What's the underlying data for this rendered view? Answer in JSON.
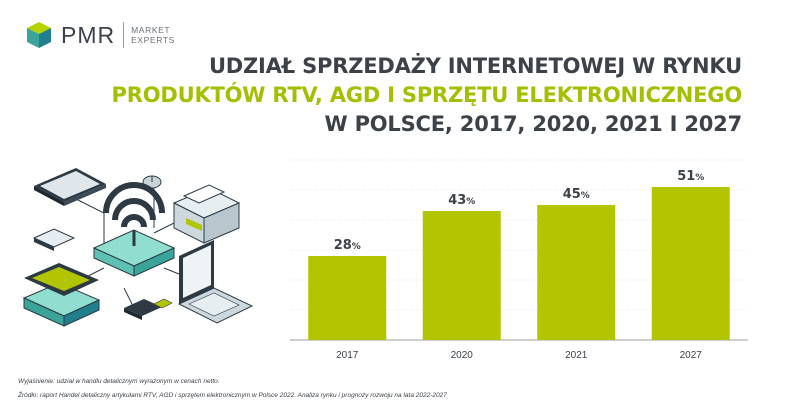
{
  "logo": {
    "name": "PMR",
    "sub_line1": "MARKET",
    "sub_line2": "EXPERTS"
  },
  "title": {
    "line1": "UDZIAŁ SPRZEDAŻY INTERNETOWEJ W RYNKU",
    "line2": "PRODUKTÓW RTV, AGD I SPRZĘTU ELEKTRONICZNEGO",
    "line3": "W POLSCE, 2017, 2020, 2021 I 2027"
  },
  "chart_data": {
    "type": "bar",
    "categories": [
      "2017",
      "2020",
      "2021",
      "2027"
    ],
    "values": [
      28,
      43,
      45,
      51
    ],
    "value_suffix": "%",
    "ylim": [
      0,
      60
    ],
    "grid": "horizontal",
    "bar_color": "#b2c500"
  },
  "footnotes": {
    "explanation": "Wyjaśnienie: udział w handlu detalicznym wyrażonym w cenach netto.",
    "source": "Źródło: raport Handel detaliczny artykułami RTV, AGD i sprzętem elektronicznym w Polsce 2022. Analiza rynku i prognozy rozwoju na lata 2022-2027"
  }
}
